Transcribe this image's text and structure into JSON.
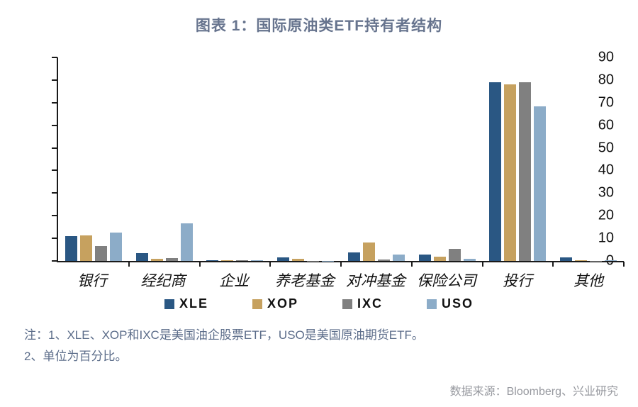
{
  "title": "图表 1：国际原油类ETF持有者结构",
  "chart_data": {
    "type": "bar",
    "title": "图表 1：国际原油类ETF持有者结构",
    "categories": [
      "银行",
      "经纪商",
      "企业",
      "养老基金",
      "对冲基金",
      "保险公司",
      "投行",
      "其他"
    ],
    "series": [
      {
        "name": "XLE",
        "color": "#2A5783",
        "values": [
          11,
          3.4,
          0.3,
          1.6,
          3.8,
          2.9,
          79,
          1.5
        ]
      },
      {
        "name": "XOP",
        "color": "#C6A15F",
        "values": [
          11.3,
          1.1,
          0.3,
          1.0,
          8.1,
          2.0,
          78,
          0.4
        ]
      },
      {
        "name": "IXC",
        "color": "#808080",
        "values": [
          6.5,
          1.4,
          0.3,
          0.1,
          0.7,
          5.2,
          79,
          0.1
        ]
      },
      {
        "name": "USO",
        "color": "#8CACC8",
        "values": [
          12.5,
          16.5,
          0.3,
          0.1,
          2.8,
          1.0,
          68.5,
          0.3
        ]
      }
    ],
    "ylim": [
      0,
      90
    ],
    "yticks": [
      0,
      10,
      20,
      30,
      40,
      50,
      60,
      70,
      80,
      90
    ],
    "xlabel": "",
    "ylabel": "",
    "grid": false,
    "legend_position": "bottom",
    "unit": "百分比"
  },
  "notes": {
    "line1": "注：1、XLE、XOP和IXC是美国油企股票ETF，USO是美国原油期货ETF。",
    "line2": "2、单位为百分比。"
  },
  "source": "数据来源：Bloomberg、兴业研究"
}
